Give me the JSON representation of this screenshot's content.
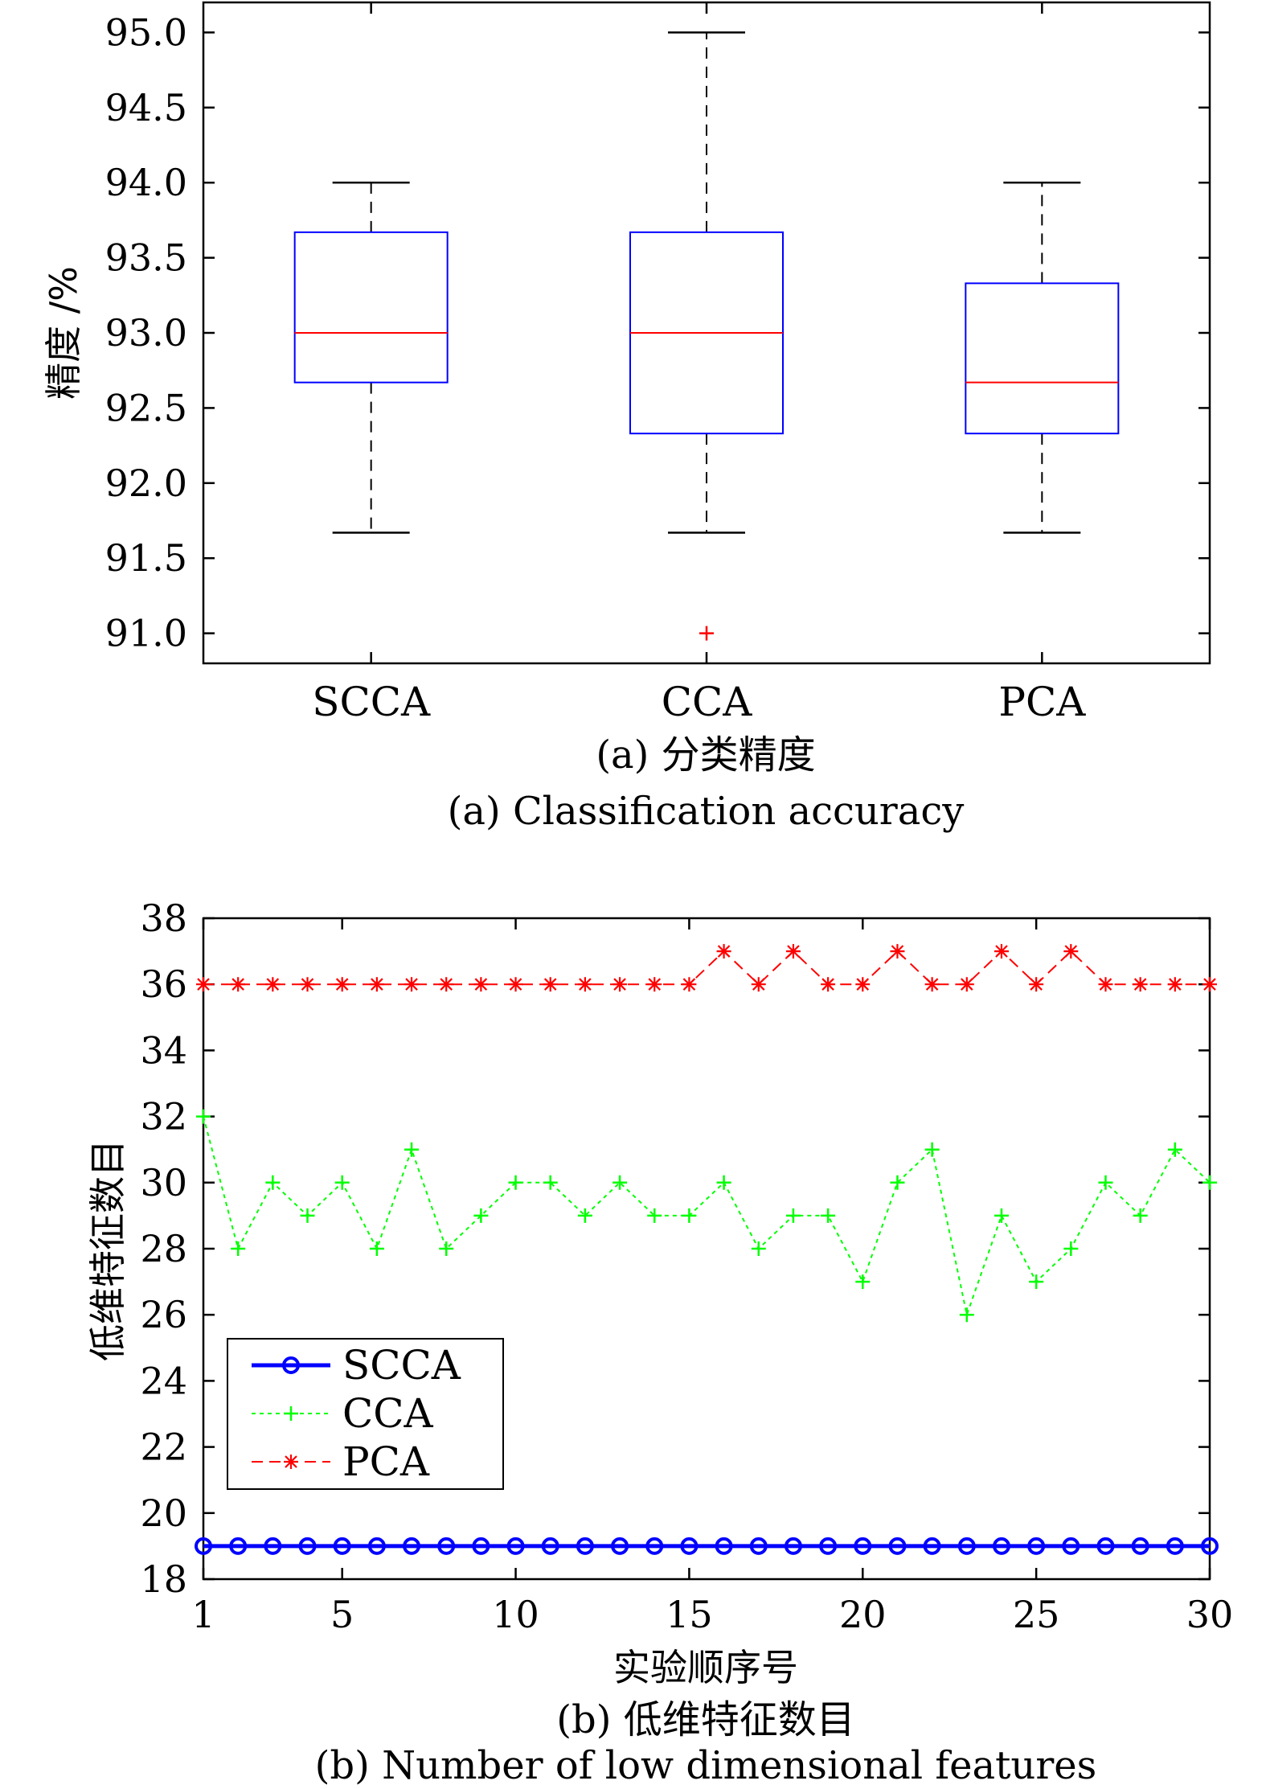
{
  "chart_data": [
    {
      "type": "box",
      "categories": [
        "SCCA",
        "CCA",
        "PCA"
      ],
      "boxes": [
        {
          "name": "SCCA",
          "whisker_low": 91.67,
          "q1": 92.67,
          "median": 93.0,
          "q3": 93.67,
          "whisker_high": 94.0,
          "outliers": []
        },
        {
          "name": "CCA",
          "whisker_low": 91.67,
          "q1": 92.33,
          "median": 93.0,
          "q3": 93.67,
          "whisker_high": 95.0,
          "outliers": [
            91.0
          ]
        },
        {
          "name": "PCA",
          "whisker_low": 91.67,
          "q1": 92.33,
          "median": 92.67,
          "q3": 93.33,
          "whisker_high": 94.0,
          "outliers": []
        }
      ],
      "ylabel": "精度 /%",
      "ylim": [
        90.8,
        95.2
      ],
      "yticks": [
        "91.0",
        "91.5",
        "92.0",
        "92.5",
        "93.0",
        "93.5",
        "94.0",
        "94.5",
        "95.0"
      ],
      "caption_cn": "(a) 分类精度",
      "caption_en": "(a) Classification accuracy",
      "colors": {
        "box": "#0000ff",
        "median": "#ff0000",
        "whisker": "#000000",
        "outlier": "#ff0000"
      }
    },
    {
      "type": "line",
      "x": [
        1,
        2,
        3,
        4,
        5,
        6,
        7,
        8,
        9,
        10,
        11,
        12,
        13,
        14,
        15,
        16,
        17,
        18,
        19,
        20,
        21,
        22,
        23,
        24,
        25,
        26,
        27,
        28,
        29,
        30
      ],
      "series": [
        {
          "name": "SCCA",
          "color": "#0000ff",
          "marker": "circle",
          "values": [
            19,
            19,
            19,
            19,
            19,
            19,
            19,
            19,
            19,
            19,
            19,
            19,
            19,
            19,
            19,
            19,
            19,
            19,
            19,
            19,
            19,
            19,
            19,
            19,
            19,
            19,
            19,
            19,
            19,
            19
          ]
        },
        {
          "name": "CCA",
          "color": "#00ff00",
          "marker": "plus",
          "values": [
            32,
            28,
            30,
            29,
            30,
            28,
            31,
            28,
            29,
            30,
            30,
            29,
            30,
            29,
            29,
            30,
            28,
            29,
            29,
            27,
            30,
            31,
            26,
            29,
            27,
            28,
            30,
            29,
            31,
            30
          ]
        },
        {
          "name": "PCA",
          "color": "#ff0000",
          "marker": "star",
          "values": [
            36,
            36,
            36,
            36,
            36,
            36,
            36,
            36,
            36,
            36,
            36,
            36,
            36,
            36,
            36,
            37,
            36,
            37,
            36,
            36,
            37,
            36,
            36,
            37,
            36,
            37,
            36,
            36,
            36,
            36
          ]
        }
      ],
      "xlabel": "实验顺序号",
      "ylabel": "低维特征数目",
      "xlim": [
        1,
        30
      ],
      "ylim": [
        18,
        38
      ],
      "xticks": [
        "1",
        "5",
        "10",
        "15",
        "20",
        "25",
        "30"
      ],
      "yticks": [
        "18",
        "20",
        "22",
        "24",
        "26",
        "28",
        "30",
        "32",
        "34",
        "36",
        "38"
      ],
      "legend_position": "bottom-left",
      "caption_cn": "(b) 低维特征数目",
      "caption_en": "(b) Number of low dimensional features"
    }
  ]
}
